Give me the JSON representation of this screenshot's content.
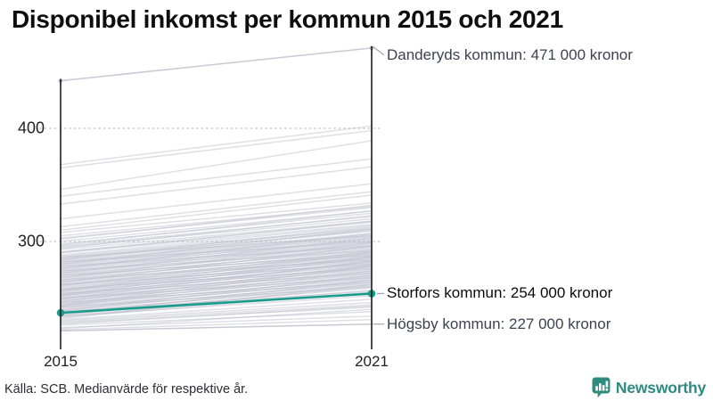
{
  "title": "Disponibel inkomst per kommun 2015 och 2021",
  "source": "Källa: SCB. Medianvärde för respektive år.",
  "logo": {
    "text": "Newsworthy",
    "icon": "bar-chart-speech-bubble-icon",
    "color": "#2e8b80"
  },
  "colors": {
    "highlight_line": "#1a9c8c",
    "background_line": "#bdbdcb",
    "outlier_line": "#c6c6d3",
    "axis": "#1c1c1c",
    "gridline": "#c9c9cf",
    "connector": "#9c9ca8",
    "annotation_text": "#3e4150",
    "annotation_text_highlight": "#0b0b0b",
    "title_text": "#0e0e0e"
  },
  "chart_data": {
    "type": "line",
    "subtype": "slope-chart",
    "x_categories": [
      "2015",
      "2021"
    ],
    "x_tick_labels": [
      "2015",
      "2021"
    ],
    "y_ticks": [
      400,
      300
    ],
    "y_tick_labels": [
      "400",
      "300"
    ],
    "ylim": [
      215,
      480
    ],
    "unit": "tusen kronor (medianvärde disponibel inkomst)",
    "grid": "dotted-horizontal",
    "annotations": [
      {
        "label": "Danderyds kommun: 471 000 kronor",
        "values": [
          442,
          471
        ],
        "dots": true,
        "position": "top",
        "highlight": false
      },
      {
        "label": "Storfors kommun: 254 000 kronor",
        "values": [
          237,
          254
        ],
        "dots": true,
        "position": "right",
        "highlight": true
      },
      {
        "label": "Högsby kommun: 227 000 kronor",
        "values": [
          221,
          227
        ],
        "dots": false,
        "position": "right",
        "highlight": false
      }
    ],
    "background_lines": [
      [
        368,
        402
      ],
      [
        365,
        398
      ],
      [
        346,
        389
      ],
      [
        340,
        373
      ],
      [
        333,
        366
      ],
      [
        320,
        351
      ],
      [
        313,
        344
      ],
      [
        310,
        341
      ],
      [
        308,
        334
      ],
      [
        305,
        331
      ],
      [
        303,
        330
      ],
      [
        300,
        327
      ],
      [
        298,
        325
      ],
      [
        296,
        322
      ],
      [
        295,
        320
      ],
      [
        293,
        318
      ],
      [
        291,
        317
      ],
      [
        290,
        315
      ],
      [
        288,
        314
      ],
      [
        287,
        312
      ],
      [
        286,
        311
      ],
      [
        285,
        309
      ],
      [
        284,
        310
      ],
      [
        283,
        307
      ],
      [
        282,
        306
      ],
      [
        281,
        305
      ],
      [
        280,
        304
      ],
      [
        279,
        303
      ],
      [
        278,
        301
      ],
      [
        277,
        302
      ],
      [
        276,
        300
      ],
      [
        275,
        299
      ],
      [
        274,
        297
      ],
      [
        273,
        298
      ],
      [
        272,
        296
      ],
      [
        271,
        294
      ],
      [
        270,
        295
      ],
      [
        269,
        292
      ],
      [
        268,
        293
      ],
      [
        267,
        290
      ],
      [
        266,
        291
      ],
      [
        265,
        288
      ],
      [
        264,
        289
      ],
      [
        263,
        287
      ],
      [
        262,
        285
      ],
      [
        261,
        286
      ],
      [
        260,
        283
      ],
      [
        259,
        284
      ],
      [
        258,
        281
      ],
      [
        257,
        282
      ],
      [
        256,
        279
      ],
      [
        255,
        280
      ],
      [
        254,
        277
      ],
      [
        253,
        278
      ],
      [
        252,
        275
      ],
      [
        251,
        276
      ],
      [
        250,
        273
      ],
      [
        249,
        274
      ],
      [
        248,
        271
      ],
      [
        247,
        272
      ],
      [
        246,
        269
      ],
      [
        245,
        270
      ],
      [
        244,
        267
      ],
      [
        243,
        268
      ],
      [
        242,
        265
      ],
      [
        241,
        266
      ],
      [
        240,
        263
      ],
      [
        239,
        264
      ],
      [
        238,
        261
      ],
      [
        237,
        262
      ],
      [
        236,
        259
      ],
      [
        235,
        260
      ],
      [
        234,
        257
      ],
      [
        233,
        255
      ],
      [
        286,
        305
      ],
      [
        282,
        300
      ],
      [
        278,
        296
      ],
      [
        274,
        292
      ],
      [
        270,
        288
      ],
      [
        266,
        284
      ],
      [
        262,
        280
      ],
      [
        258,
        276
      ],
      [
        254,
        272
      ],
      [
        250,
        268
      ],
      [
        246,
        264
      ],
      [
        242,
        260
      ],
      [
        238,
        256
      ],
      [
        234,
        252
      ],
      [
        231,
        249
      ],
      [
        230,
        246
      ],
      [
        229,
        244
      ],
      [
        228,
        242
      ],
      [
        252,
        282
      ],
      [
        247,
        279
      ],
      [
        256,
        287
      ],
      [
        261,
        291
      ],
      [
        243,
        274
      ],
      [
        239,
        270
      ],
      [
        235,
        266
      ],
      [
        232,
        262
      ],
      [
        244,
        278
      ],
      [
        249,
        283
      ],
      [
        253,
        286
      ],
      [
        257,
        290
      ],
      [
        264,
        296
      ],
      [
        268,
        299
      ],
      [
        272,
        303
      ],
      [
        276,
        307
      ],
      [
        280,
        311
      ],
      [
        284,
        313
      ],
      [
        290,
        318
      ],
      [
        294,
        323
      ],
      [
        297,
        327
      ],
      [
        302,
        332
      ],
      [
        226,
        238
      ],
      [
        224,
        234
      ],
      [
        222,
        231
      ],
      [
        223,
        240
      ],
      [
        227,
        243
      ]
    ]
  }
}
